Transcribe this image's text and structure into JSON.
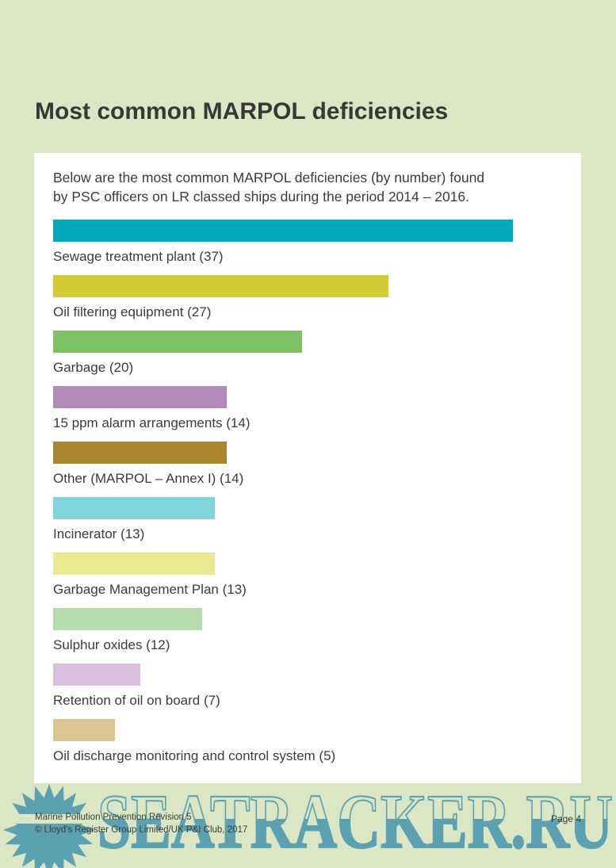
{
  "page": {
    "title": "Most common MARPOL deficiencies",
    "bg_color": "#dbe7c4",
    "panel_color": "#ffffff",
    "text_color": "#3b3b3a"
  },
  "panel": {
    "intro_lines": [
      "Below are the most common MARPOL deficiencies (by number) found",
      "by PSC officers on LR classed ships during the period 2014 – 2016."
    ]
  },
  "chart_data": {
    "type": "bar",
    "orientation": "horizontal",
    "title": "Most common MARPOL deficiencies",
    "xlabel": "",
    "ylabel": "",
    "xlim": [
      0,
      37
    ],
    "axes_hidden": true,
    "grid": false,
    "legend": false,
    "categories": [
      "Sewage treatment plant",
      "Oil filtering equipment",
      "Garbage",
      "15 ppm alarm arrangements",
      "Other (MARPOL – Annex I)",
      "Incinerator",
      "Garbage Management Plan",
      "Sulphur oxides",
      "Retention of oil on board",
      "Oil discharge monitoring and control system"
    ],
    "values": [
      37,
      27,
      20,
      14,
      14,
      13,
      13,
      12,
      7,
      5
    ],
    "display_labels": [
      "Sewage treatment plant (37)",
      "Oil filtering equipment (27)",
      "Garbage (20)",
      "15 ppm alarm arrangements (14)",
      "Other (MARPOL – Annex I) (14)",
      "Incinerator (13)",
      "Garbage Management Plan (13)",
      "Sulphur oxides (12)",
      "Retention of oil on board (7)",
      "Oil discharge monitoring and control system (5)"
    ],
    "bar_colors": [
      "#00a9b7",
      "#d3cb36",
      "#7dc263",
      "#b18ab8",
      "#ab842e",
      "#7fd6dc",
      "#ece88f",
      "#b7dcab",
      "#d9c0de",
      "#d9c492"
    ]
  },
  "footer": {
    "left_line1": "Marine Pollution Prevention Revision 5",
    "left_line2": "© Lloyd's Register Group Limited/UK P&I Club, 2017",
    "page_label": "Page 4"
  },
  "watermark": {
    "text": "SEATRACKER.RU",
    "color": "#5ba1b2"
  }
}
